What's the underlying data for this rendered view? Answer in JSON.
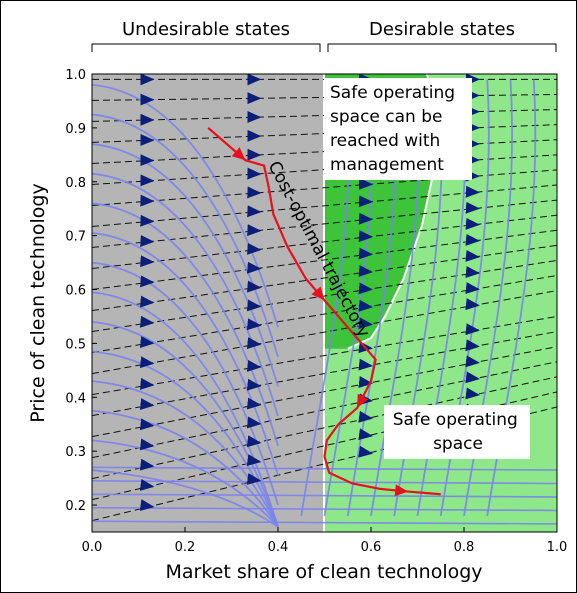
{
  "chart_data": {
    "type": "line",
    "xlabel": "Market share of clean technology",
    "ylabel": "Price of clean technology",
    "xlim": [
      0.0,
      1.0
    ],
    "ylim": [
      0.15,
      1.0
    ],
    "xticks": [
      "0.0",
      "0.2",
      "0.4",
      "0.6",
      "0.8",
      "1.0"
    ],
    "xtick_values": [
      0.0,
      0.2,
      0.4,
      0.6,
      0.8,
      1.0
    ],
    "yticks": [
      "0.2",
      "0.3",
      "0.4",
      "0.5",
      "0.6",
      "0.7",
      "0.8",
      "0.9",
      "1.0"
    ],
    "ytick_values": [
      0.2,
      0.3,
      0.4,
      0.5,
      0.6,
      0.7,
      0.8,
      0.9,
      1.0
    ],
    "brackets": [
      {
        "label": "Undesirable states",
        "range": [
          0.0,
          0.5
        ]
      },
      {
        "label": "Desirable states",
        "range": [
          0.5,
          1.0
        ]
      }
    ],
    "regions": [
      {
        "id": "undesirable",
        "color": "#b5b5b5",
        "x_range": [
          0.0,
          0.5
        ]
      },
      {
        "id": "safe-space",
        "color": "#8ee889",
        "x_range": [
          0.5,
          1.0
        ]
      },
      {
        "id": "reachable",
        "color": "#3ec43b",
        "boundary": [
          [
            0.5,
            0.49
          ],
          [
            0.5,
            1.0
          ],
          [
            0.72,
            1.0
          ],
          [
            0.745,
            0.93
          ],
          [
            0.735,
            0.82
          ],
          [
            0.71,
            0.72
          ],
          [
            0.67,
            0.62
          ],
          [
            0.63,
            0.55
          ],
          [
            0.6,
            0.51
          ],
          [
            0.55,
            0.49
          ]
        ]
      }
    ],
    "series": [
      {
        "name": "Cost-optimal trajectory",
        "color": "#e8101a",
        "x": [
          0.25,
          0.29,
          0.33,
          0.37,
          0.38,
          0.39,
          0.42,
          0.46,
          0.5,
          0.55,
          0.58,
          0.61,
          0.6,
          0.57,
          0.53,
          0.505,
          0.5,
          0.51,
          0.56,
          0.62,
          0.68,
          0.75
        ],
        "y": [
          0.9,
          0.87,
          0.84,
          0.83,
          0.79,
          0.74,
          0.68,
          0.62,
          0.58,
          0.53,
          0.5,
          0.47,
          0.43,
          0.38,
          0.35,
          0.32,
          0.29,
          0.26,
          0.24,
          0.23,
          0.225,
          0.22
        ]
      }
    ],
    "annotations": [
      {
        "text": [
          "Safe operating",
          "space can be",
          "reached with",
          "management"
        ],
        "at": [
          0.52,
          0.96
        ]
      },
      {
        "text": [
          "Cost-optimal trajectory"
        ],
        "at": [
          0.42,
          0.66
        ]
      },
      {
        "text": [
          "Safe operating",
          "space"
        ],
        "at": [
          0.76,
          0.36
        ]
      }
    ],
    "phase_arrow_color": "#0b1f7a",
    "streamline_color": "#7a83ee"
  }
}
